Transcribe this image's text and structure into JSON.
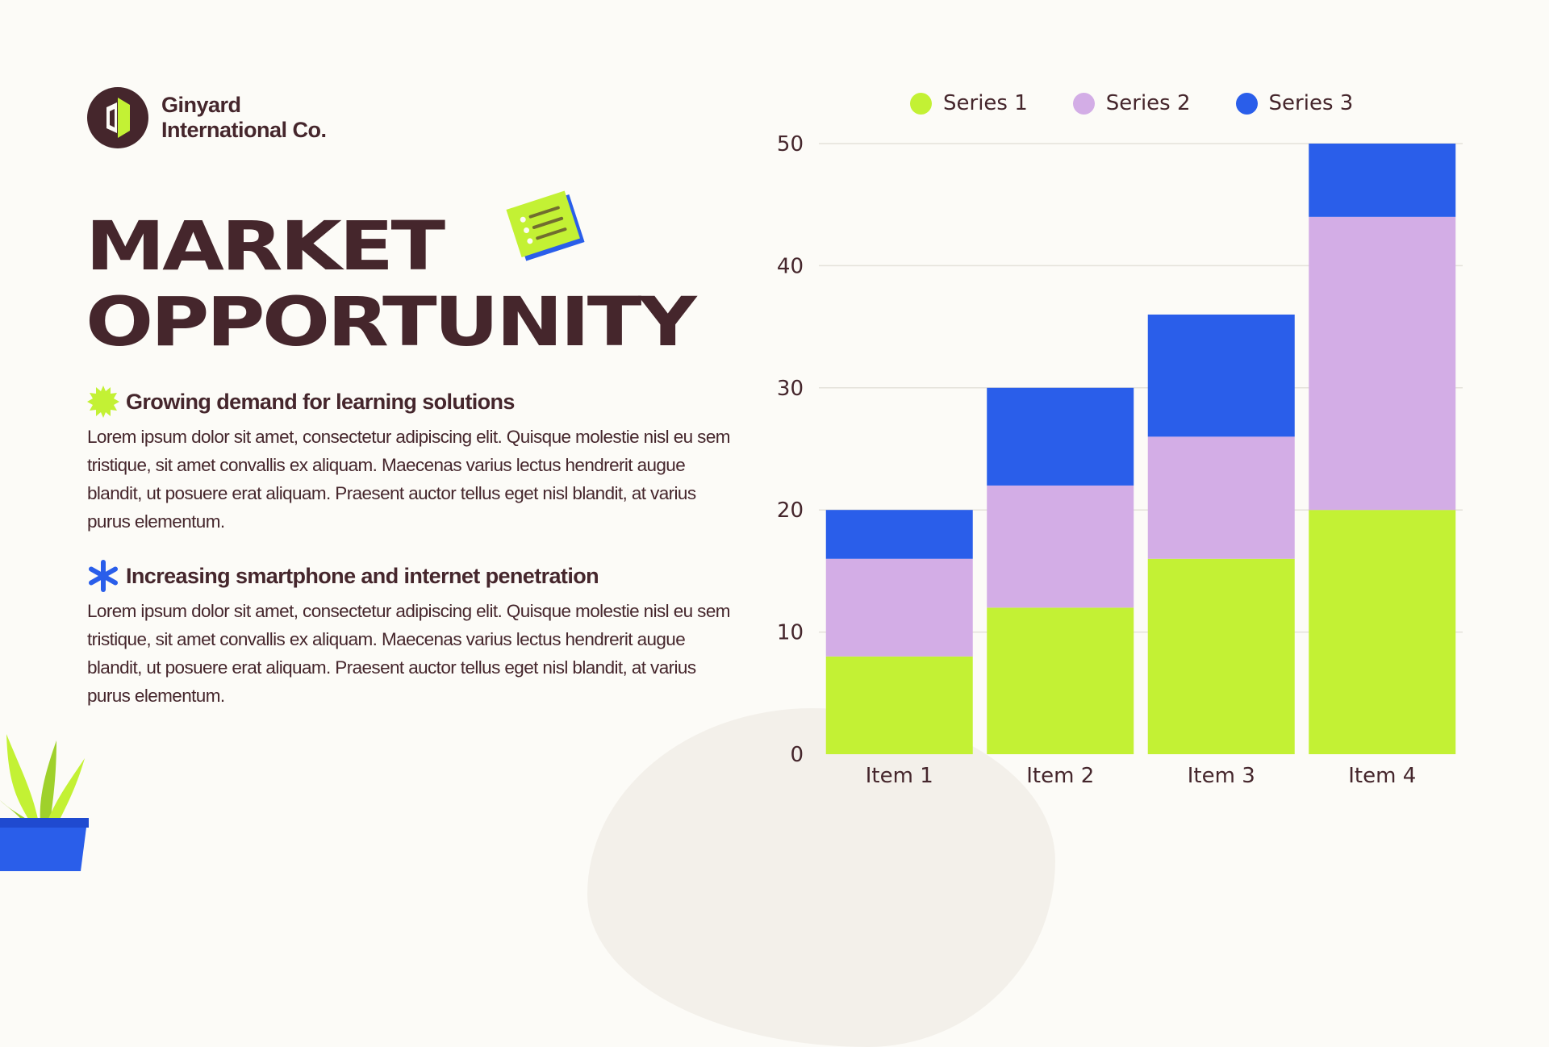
{
  "brand": {
    "name_line1": "Ginyard",
    "name_line2": "International Co.",
    "colors": {
      "dark": "#45262c",
      "lime": "#c3f134",
      "lavender": "#d3ade6",
      "blue": "#2a5eea"
    }
  },
  "title": {
    "line1": "MARKET",
    "line2": "OPPORTUNITY"
  },
  "decor": {
    "note_icon": "checklist-note-icon",
    "plant_icon": "potted-plant-icon"
  },
  "bullets": [
    {
      "icon": "lime-starburst-icon",
      "heading": "Growing demand for learning solutions",
      "body": "Lorem ipsum dolor sit amet, consectetur adipiscing elit. Quisque molestie nisl eu sem tristique, sit amet convallis ex aliquam. Maecenas varius lectus hendrerit augue blandit, ut posuere erat aliquam. Praesent auctor tellus eget nisl blandit, at varius purus elementum."
    },
    {
      "icon": "blue-asterisk-icon",
      "heading": "Increasing smartphone and internet penetration",
      "body": "Lorem ipsum dolor sit amet, consectetur adipiscing elit. Quisque molestie nisl eu sem tristique, sit amet convallis ex aliquam. Maecenas varius lectus hendrerit augue blandit, ut posuere erat aliquam. Praesent auctor tellus eget nisl blandit, at varius purus elementum."
    }
  ],
  "chart_data": {
    "type": "bar",
    "stacked": true,
    "categories": [
      "Item 1",
      "Item 2",
      "Item 3",
      "Item 4"
    ],
    "series": [
      {
        "name": "Series 1",
        "color": "#c3f134",
        "values": [
          8,
          12,
          16,
          20
        ]
      },
      {
        "name": "Series 2",
        "color": "#d3ade6",
        "values": [
          8,
          10,
          10,
          24
        ]
      },
      {
        "name": "Series 3",
        "color": "#2a5eea",
        "values": [
          4,
          8,
          10,
          6
        ]
      }
    ],
    "ylim": [
      0,
      50
    ],
    "yticks": [
      "0",
      "10",
      "20",
      "30",
      "40",
      "50"
    ],
    "grid": true,
    "legend": "top"
  }
}
